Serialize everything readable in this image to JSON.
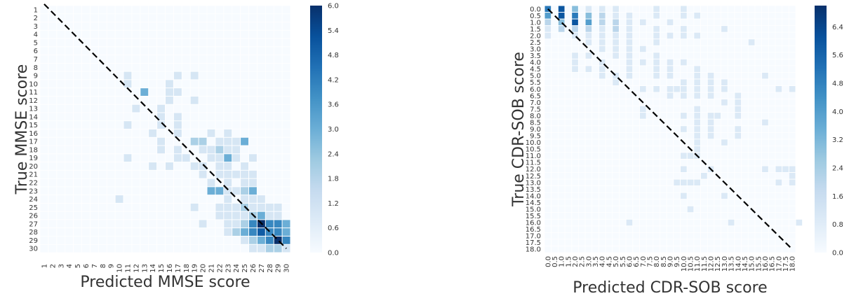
{
  "colors": {
    "low": "#f7fbff",
    "mid": "#6aaed6",
    "high": "#08306b",
    "diagonal": "#000000",
    "cell_border": "#ffffff"
  },
  "chart_data": [
    {
      "type": "heatmap",
      "title": "",
      "xlabel": "Predicted MMSE score",
      "ylabel": "True MMSE score",
      "x_categories": [
        "1",
        "2",
        "3",
        "4",
        "5",
        "6",
        "7",
        "8",
        "9",
        "10",
        "11",
        "12",
        "13",
        "14",
        "15",
        "16",
        "17",
        "18",
        "19",
        "20",
        "21",
        "22",
        "23",
        "24",
        "25",
        "26",
        "27",
        "28",
        "29",
        "30"
      ],
      "y_categories": [
        "1",
        "2",
        "3",
        "4",
        "5",
        "6",
        "7",
        "8",
        "9",
        "10",
        "11",
        "12",
        "13",
        "14",
        "15",
        "16",
        "17",
        "18",
        "19",
        "20",
        "21",
        "22",
        "23",
        "24",
        "25",
        "26",
        "27",
        "28",
        "29",
        "30"
      ],
      "colorbar": {
        "min": 0,
        "max": 6,
        "ticks": [
          "0.0",
          "0.6",
          "1.2",
          "1.8",
          "2.4",
          "3.0",
          "3.6",
          "4.2",
          "4.8",
          "5.4",
          "6.0"
        ]
      },
      "diagonal_line": true,
      "grid": false,
      "cells": [
        [
          9,
          11,
          1
        ],
        [
          9,
          17,
          1
        ],
        [
          9,
          19,
          1
        ],
        [
          10,
          11,
          1
        ],
        [
          10,
          16,
          1
        ],
        [
          11,
          13,
          3
        ],
        [
          11,
          16,
          1
        ],
        [
          11,
          17,
          1
        ],
        [
          12,
          16,
          1
        ],
        [
          12,
          19,
          1
        ],
        [
          13,
          12,
          1
        ],
        [
          13,
          15,
          1
        ],
        [
          14,
          15,
          1
        ],
        [
          14,
          17,
          1
        ],
        [
          15,
          11,
          1
        ],
        [
          15,
          15,
          1
        ],
        [
          15,
          17,
          1
        ],
        [
          16,
          14,
          1
        ],
        [
          16,
          17,
          1
        ],
        [
          16,
          21,
          1
        ],
        [
          16,
          23,
          1
        ],
        [
          17,
          15,
          1
        ],
        [
          17,
          19,
          2
        ],
        [
          17,
          20,
          2
        ],
        [
          17,
          22,
          1
        ],
        [
          17,
          23,
          1
        ],
        [
          17,
          24,
          1
        ],
        [
          17,
          25,
          3
        ],
        [
          18,
          15,
          1
        ],
        [
          18,
          17,
          1
        ],
        [
          18,
          20,
          1
        ],
        [
          18,
          21,
          1
        ],
        [
          18,
          22,
          2
        ],
        [
          18,
          23,
          1
        ],
        [
          18,
          24,
          1
        ],
        [
          19,
          11,
          1
        ],
        [
          19,
          17,
          1
        ],
        [
          19,
          18,
          1
        ],
        [
          19,
          21,
          1
        ],
        [
          19,
          22,
          1
        ],
        [
          19,
          23,
          3
        ],
        [
          19,
          24,
          1
        ],
        [
          19,
          26,
          1
        ],
        [
          20,
          14,
          1
        ],
        [
          20,
          16,
          1
        ],
        [
          20,
          19,
          1
        ],
        [
          20,
          20,
          1
        ],
        [
          20,
          22,
          1
        ],
        [
          20,
          23,
          1
        ],
        [
          20,
          25,
          1
        ],
        [
          21,
          20,
          1
        ],
        [
          21,
          22,
          1
        ],
        [
          21,
          23,
          1
        ],
        [
          21,
          24,
          1
        ],
        [
          21,
          25,
          1
        ],
        [
          21,
          26,
          1
        ],
        [
          22,
          21,
          1
        ],
        [
          22,
          23,
          1
        ],
        [
          22,
          25,
          1
        ],
        [
          22,
          26,
          1
        ],
        [
          23,
          21,
          3
        ],
        [
          23,
          22,
          3
        ],
        [
          23,
          23,
          1
        ],
        [
          23,
          24,
          1
        ],
        [
          23,
          25,
          2
        ],
        [
          23,
          26,
          3
        ],
        [
          24,
          10,
          1
        ],
        [
          24,
          23,
          1
        ],
        [
          24,
          25,
          1
        ],
        [
          24,
          26,
          1
        ],
        [
          24,
          27,
          1
        ],
        [
          25,
          19,
          1
        ],
        [
          25,
          22,
          1
        ],
        [
          25,
          23,
          1
        ],
        [
          25,
          24,
          1
        ],
        [
          25,
          25,
          2
        ],
        [
          25,
          26,
          1
        ],
        [
          25,
          27,
          1
        ],
        [
          25,
          28,
          1
        ],
        [
          25,
          29,
          1
        ],
        [
          26,
          22,
          1
        ],
        [
          26,
          23,
          1
        ],
        [
          26,
          24,
          1
        ],
        [
          26,
          25,
          1
        ],
        [
          26,
          26,
          2
        ],
        [
          26,
          27,
          3
        ],
        [
          26,
          28,
          1
        ],
        [
          26,
          29,
          1
        ],
        [
          27,
          20,
          1
        ],
        [
          27,
          23,
          1
        ],
        [
          27,
          24,
          1
        ],
        [
          27,
          25,
          2
        ],
        [
          27,
          26,
          4
        ],
        [
          27,
          27,
          6
        ],
        [
          27,
          28,
          4
        ],
        [
          27,
          29,
          4
        ],
        [
          27,
          30,
          3
        ],
        [
          28,
          23,
          1
        ],
        [
          28,
          24,
          2
        ],
        [
          28,
          25,
          3
        ],
        [
          28,
          26,
          4
        ],
        [
          28,
          27,
          5
        ],
        [
          28,
          28,
          4
        ],
        [
          28,
          29,
          4
        ],
        [
          28,
          30,
          3
        ],
        [
          29,
          25,
          1
        ],
        [
          29,
          26,
          2
        ],
        [
          29,
          27,
          3
        ],
        [
          29,
          28,
          4
        ],
        [
          29,
          29,
          6
        ],
        [
          29,
          30,
          4
        ],
        [
          30,
          26,
          1
        ],
        [
          30,
          27,
          1
        ],
        [
          30,
          28,
          2
        ],
        [
          30,
          29,
          2
        ],
        [
          30,
          30,
          1
        ]
      ]
    },
    {
      "type": "heatmap",
      "title": "",
      "xlabel": "Predicted CDR-SOB score",
      "ylabel": "True CDR-SOB score",
      "x_categories": [
        "0.0",
        "0.5",
        "1.0",
        "1.5",
        "2.0",
        "2.5",
        "3.0",
        "3.5",
        "4.0",
        "4.5",
        "5.0",
        "5.5",
        "6.0",
        "6.5",
        "7.0",
        "7.5",
        "8.0",
        "8.5",
        "9.0",
        "9.5",
        "10.0",
        "10.5",
        "11.0",
        "11.5",
        "12.0",
        "12.5",
        "13.0",
        "13.5",
        "14.0",
        "14.5",
        "15.0",
        "15.5",
        "16.0",
        "16.5",
        "17.0",
        "17.5",
        "18.0"
      ],
      "y_categories": [
        "0.0",
        "0.5",
        "1.0",
        "1.5",
        "2.0",
        "2.5",
        "3.0",
        "3.5",
        "4.0",
        "4.5",
        "5.0",
        "5.5",
        "6.0",
        "6.5",
        "7.0",
        "7.5",
        "8.0",
        "8.5",
        "9.0",
        "9.5",
        "10.0",
        "10.5",
        "11.0",
        "11.5",
        "12.0",
        "12.5",
        "13.0",
        "13.5",
        "14.0",
        "14.5",
        "15.0",
        "15.5",
        "16.0",
        "16.5",
        "17.0",
        "17.5",
        "18.0"
      ],
      "colorbar": {
        "min": 0,
        "max": 7,
        "ticks": [
          "0.0",
          "0.8",
          "1.6",
          "2.4",
          "3.2",
          "4.0",
          "4.8",
          "5.6",
          "6.4"
        ]
      },
      "diagonal_line": true,
      "grid": false,
      "cells": [
        [
          0,
          0,
          5
        ],
        [
          0,
          1,
          6
        ],
        [
          0,
          2,
          3
        ],
        [
          0,
          3,
          1
        ],
        [
          0,
          4,
          1
        ],
        [
          0,
          5,
          1
        ],
        [
          0,
          8,
          1
        ],
        [
          0,
          10,
          1
        ],
        [
          0.5,
          0,
          4
        ],
        [
          0.5,
          1,
          6
        ],
        [
          0.5,
          2,
          5
        ],
        [
          0.5,
          3,
          3
        ],
        [
          0.5,
          4,
          2
        ],
        [
          0.5,
          5,
          1
        ],
        [
          0.5,
          6,
          1
        ],
        [
          0.5,
          8,
          1
        ],
        [
          0.5,
          10,
          1
        ],
        [
          0.5,
          11,
          1
        ],
        [
          1,
          0,
          2
        ],
        [
          1,
          1,
          3
        ],
        [
          1,
          2,
          6
        ],
        [
          1,
          3,
          4
        ],
        [
          1,
          4,
          2
        ],
        [
          1,
          5,
          2
        ],
        [
          1,
          6,
          1
        ],
        [
          1,
          7,
          1
        ],
        [
          1,
          9,
          1
        ],
        [
          1.5,
          0,
          1
        ],
        [
          1.5,
          1,
          2
        ],
        [
          1.5,
          2,
          2
        ],
        [
          1.5,
          3,
          2
        ],
        [
          1.5,
          4,
          1
        ],
        [
          1.5,
          5,
          2
        ],
        [
          1.5,
          6,
          1
        ],
        [
          1.5,
          8,
          1
        ],
        [
          1.5,
          10,
          1
        ],
        [
          1.5,
          13,
          1
        ],
        [
          2,
          0,
          1
        ],
        [
          2,
          2,
          1
        ],
        [
          2,
          3,
          1
        ],
        [
          2,
          4,
          1
        ],
        [
          2,
          5,
          1
        ],
        [
          2,
          6,
          1
        ],
        [
          2,
          8,
          1
        ],
        [
          2,
          9,
          1
        ],
        [
          2,
          10,
          1
        ],
        [
          2,
          11,
          1
        ],
        [
          2.5,
          3,
          1
        ],
        [
          2.5,
          4,
          1
        ],
        [
          2.5,
          5,
          1
        ],
        [
          2.5,
          6,
          1
        ],
        [
          2.5,
          8,
          1
        ],
        [
          2.5,
          15,
          1
        ],
        [
          3,
          4,
          1
        ],
        [
          3,
          5,
          1
        ],
        [
          3,
          6,
          1
        ],
        [
          3,
          7,
          1
        ],
        [
          3.5,
          2,
          1
        ],
        [
          3.5,
          3,
          1
        ],
        [
          3.5,
          5,
          1
        ],
        [
          3.5,
          6,
          1
        ],
        [
          3.5,
          8,
          1
        ],
        [
          4,
          2,
          1
        ],
        [
          4,
          4,
          1
        ],
        [
          4,
          6,
          1
        ],
        [
          4,
          7,
          1
        ],
        [
          4,
          8,
          1
        ],
        [
          4,
          9,
          1
        ],
        [
          4,
          10,
          1
        ],
        [
          4.5,
          2,
          1
        ],
        [
          4.5,
          3,
          1
        ],
        [
          4.5,
          4,
          1
        ],
        [
          4.5,
          6,
          1
        ],
        [
          4.5,
          8,
          1
        ],
        [
          4.5,
          9,
          1
        ],
        [
          4.5,
          11,
          1
        ],
        [
          5,
          4,
          1
        ],
        [
          5,
          5,
          1
        ],
        [
          5,
          6,
          1
        ],
        [
          5,
          8,
          1
        ],
        [
          5,
          9,
          1
        ],
        [
          5,
          11,
          1
        ],
        [
          5,
          12,
          1
        ],
        [
          5,
          16,
          1
        ],
        [
          5.5,
          5,
          1
        ],
        [
          5.5,
          10,
          1
        ],
        [
          5.5,
          11,
          1
        ],
        [
          5.5,
          12,
          1
        ],
        [
          5.5,
          13,
          1
        ],
        [
          6,
          7,
          1
        ],
        [
          6,
          8,
          1
        ],
        [
          6,
          9,
          1
        ],
        [
          6,
          10,
          1
        ],
        [
          6,
          11,
          1
        ],
        [
          6,
          12,
          1
        ],
        [
          6,
          13,
          1
        ],
        [
          6,
          17,
          1
        ],
        [
          6,
          18,
          1
        ],
        [
          6,
          19,
          1
        ],
        [
          6.5,
          9,
          1
        ],
        [
          6.5,
          10,
          1
        ],
        [
          6.5,
          11,
          1
        ],
        [
          6.5,
          12,
          1
        ],
        [
          6.5,
          14,
          1
        ],
        [
          7,
          13,
          1
        ],
        [
          7,
          14,
          1
        ],
        [
          7.5,
          7,
          1
        ],
        [
          7.5,
          11,
          1
        ],
        [
          7.5,
          14,
          1
        ],
        [
          8,
          7,
          1
        ],
        [
          8,
          11,
          1
        ],
        [
          8,
          12,
          1
        ],
        [
          8,
          14,
          1
        ],
        [
          8,
          20,
          1
        ],
        [
          8,
          25,
          1
        ],
        [
          8.5,
          11,
          1
        ],
        [
          8.5,
          12,
          1
        ],
        [
          8.5,
          16,
          1
        ],
        [
          9,
          11,
          1
        ],
        [
          9,
          12,
          1
        ],
        [
          9,
          14,
          1
        ],
        [
          9,
          20,
          1
        ],
        [
          9.5,
          11,
          1
        ],
        [
          9.5,
          12,
          1
        ],
        [
          9.5,
          14,
          1
        ],
        [
          10,
          22,
          1
        ],
        [
          10,
          26,
          1
        ],
        [
          10.5,
          22,
          1
        ],
        [
          11,
          20,
          1
        ],
        [
          11,
          21,
          1
        ],
        [
          11,
          22,
          1
        ],
        [
          12,
          10,
          1
        ],
        [
          12,
          12,
          1
        ],
        [
          12,
          16,
          1
        ],
        [
          12,
          17,
          1
        ],
        [
          12,
          18,
          1
        ],
        [
          12,
          35,
          1
        ],
        [
          12.5,
          18,
          1
        ],
        [
          12.5,
          23,
          1
        ],
        [
          13,
          17,
          1
        ],
        [
          13,
          18,
          1
        ],
        [
          13,
          19,
          1
        ],
        [
          13,
          20,
          1
        ],
        [
          13,
          21,
          1
        ],
        [
          13,
          22,
          1
        ],
        [
          14,
          13,
          1
        ],
        [
          14,
          20,
          1
        ],
        [
          15,
          21,
          1
        ],
        [
          16,
          6,
          1
        ],
        [
          16,
          27,
          1
        ],
        [
          16,
          37,
          1
        ]
      ]
    }
  ]
}
